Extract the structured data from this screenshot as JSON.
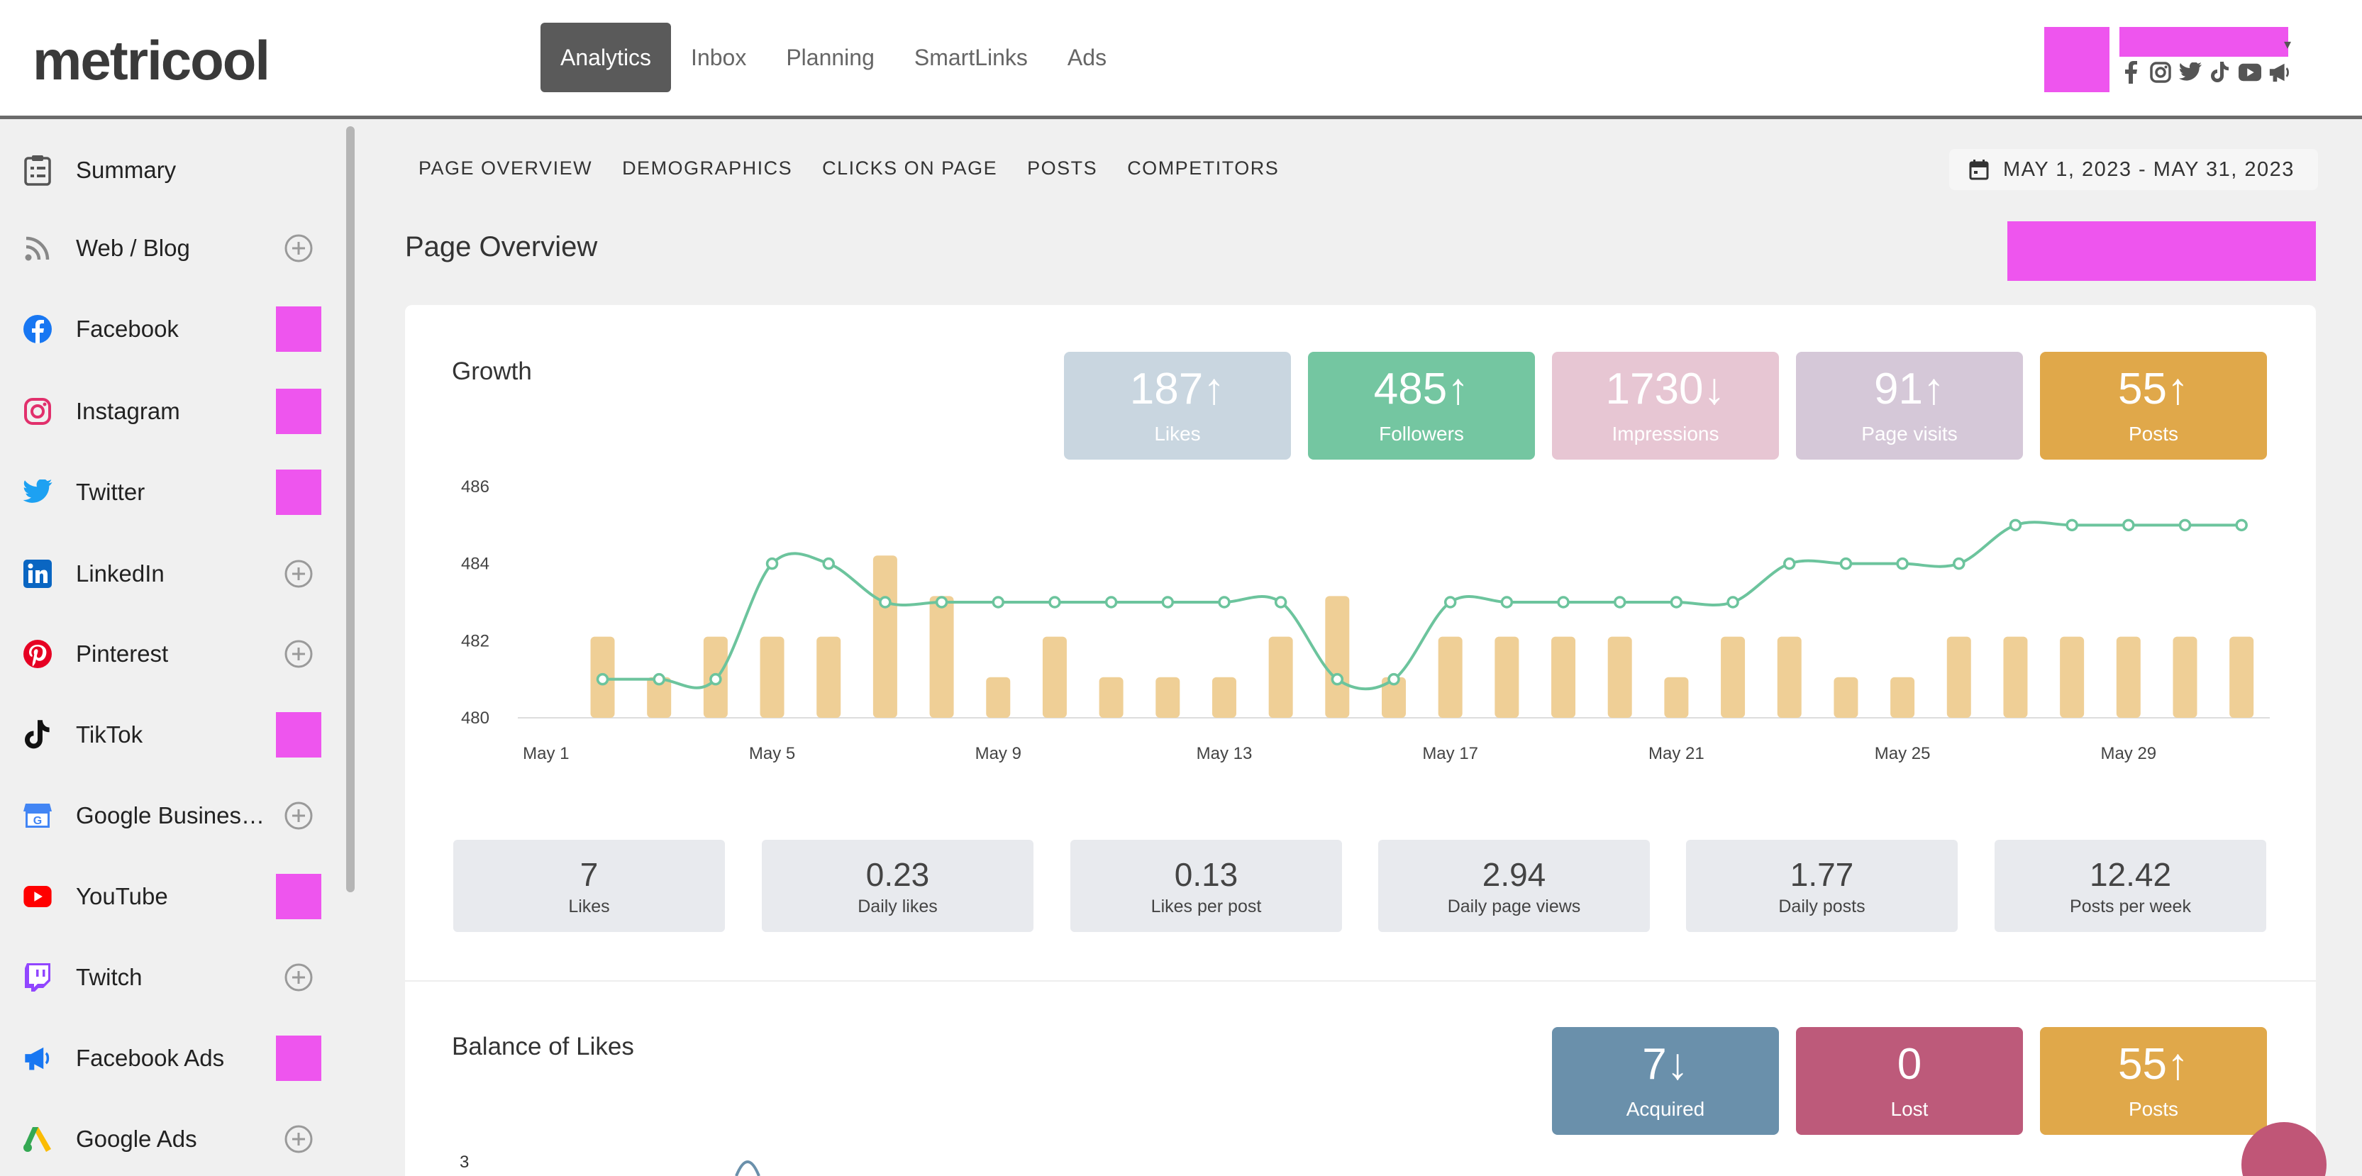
{
  "header": {
    "logo": "metricool",
    "nav": [
      "Analytics",
      "Inbox",
      "Planning",
      "SmartLinks",
      "Ads"
    ],
    "social_icons": [
      "facebook-icon",
      "instagram-icon",
      "twitter-icon",
      "tiktok-icon",
      "youtube-icon",
      "megaphone-icon"
    ]
  },
  "sidebar": {
    "items": [
      {
        "label": "Summary",
        "icon": "clipboard-icon",
        "action": "none"
      },
      {
        "label": "Web / Blog",
        "icon": "rss-icon",
        "action": "add"
      },
      {
        "label": "Facebook",
        "icon": "facebook-icon",
        "action": "connected"
      },
      {
        "label": "Instagram",
        "icon": "instagram-icon",
        "action": "connected"
      },
      {
        "label": "Twitter",
        "icon": "twitter-icon",
        "action": "connected"
      },
      {
        "label": "LinkedIn",
        "icon": "linkedin-icon",
        "action": "add"
      },
      {
        "label": "Pinterest",
        "icon": "pinterest-icon",
        "action": "add"
      },
      {
        "label": "TikTok",
        "icon": "tiktok-icon",
        "action": "connected"
      },
      {
        "label": "Google Busines…",
        "icon": "google-business-icon",
        "action": "add"
      },
      {
        "label": "YouTube",
        "icon": "youtube-icon",
        "action": "connected"
      },
      {
        "label": "Twitch",
        "icon": "twitch-icon",
        "action": "add"
      },
      {
        "label": "Facebook Ads",
        "icon": "megaphone-icon",
        "action": "connected"
      },
      {
        "label": "Google Ads",
        "icon": "google-ads-icon",
        "action": "add"
      }
    ]
  },
  "subnav": {
    "tabs": [
      "PAGE OVERVIEW",
      "DEMOGRAPHICS",
      "CLICKS ON PAGE",
      "POSTS",
      "COMPETITORS"
    ],
    "date_range": "MAY 1, 2023 - MAY 31, 2023"
  },
  "page": {
    "title": "Page Overview"
  },
  "growth": {
    "title": "Growth",
    "kpis": [
      {
        "value": "187",
        "trend": "↑",
        "label": "Likes",
        "color": "#c9d6e0"
      },
      {
        "value": "485",
        "trend": "↑",
        "label": "Followers",
        "color": "#74c6a1"
      },
      {
        "value": "1730",
        "trend": "↓",
        "label": "Impressions",
        "color": "#e7c6d3"
      },
      {
        "value": "91",
        "trend": "↑",
        "label": "Page visits",
        "color": "#d5c8d8"
      },
      {
        "value": "55",
        "trend": "↑",
        "label": "Posts",
        "color": "#e0a84a"
      }
    ],
    "stats": [
      {
        "value": "7",
        "label": "Likes"
      },
      {
        "value": "0.23",
        "label": "Daily likes"
      },
      {
        "value": "0.13",
        "label": "Likes per post"
      },
      {
        "value": "2.94",
        "label": "Daily page views"
      },
      {
        "value": "1.77",
        "label": "Daily posts"
      },
      {
        "value": "12.42",
        "label": "Posts per week"
      }
    ]
  },
  "balance": {
    "title": "Balance of Likes",
    "kpis": [
      {
        "value": "7",
        "trend": "↓",
        "label": "Acquired",
        "color": "#6a90ab"
      },
      {
        "value": "0",
        "trend": "",
        "label": "Lost",
        "color": "#bd5a7a"
      },
      {
        "value": "55",
        "trend": "↑",
        "label": "Posts",
        "color": "#e0a84a"
      }
    ],
    "y_tick_first": "3"
  },
  "chart_data": {
    "type": "line",
    "x_tick_labels": [
      "May 1",
      "May 5",
      "May 9",
      "May 13",
      "May 17",
      "May 21",
      "May 25",
      "May 29"
    ],
    "y_ticks": [
      480,
      482,
      484,
      486
    ],
    "ylim": [
      480,
      486
    ],
    "series": [
      {
        "name": "Followers",
        "kind": "line",
        "color": "#6cc49d",
        "x": [
          2,
          3,
          4,
          5,
          6,
          7,
          8,
          9,
          10,
          11,
          12,
          13,
          14,
          15,
          16,
          17,
          18,
          19,
          20,
          21,
          22,
          23,
          24,
          25,
          26,
          27,
          28,
          29,
          30,
          31
        ],
        "values": [
          481,
          481,
          481,
          484,
          484,
          483,
          483,
          483,
          483,
          483,
          483,
          483,
          483,
          481,
          481,
          483,
          483,
          483,
          483,
          483,
          483,
          484,
          484,
          484,
          484,
          485,
          485,
          485,
          485,
          485
        ]
      },
      {
        "name": "Posts",
        "kind": "bar",
        "color": "#efcf96",
        "x": [
          2,
          3,
          4,
          5,
          6,
          7,
          8,
          9,
          10,
          11,
          12,
          13,
          14,
          15,
          16,
          17,
          18,
          19,
          20,
          21,
          22,
          23,
          24,
          25,
          26,
          27,
          28,
          29,
          30,
          31
        ],
        "values": [
          2,
          1,
          2,
          2,
          2,
          4,
          3,
          1,
          2,
          1,
          1,
          1,
          2,
          3,
          1,
          2,
          2,
          2,
          2,
          1,
          2,
          2,
          1,
          1,
          2,
          2,
          2,
          2,
          2,
          2
        ]
      }
    ]
  }
}
